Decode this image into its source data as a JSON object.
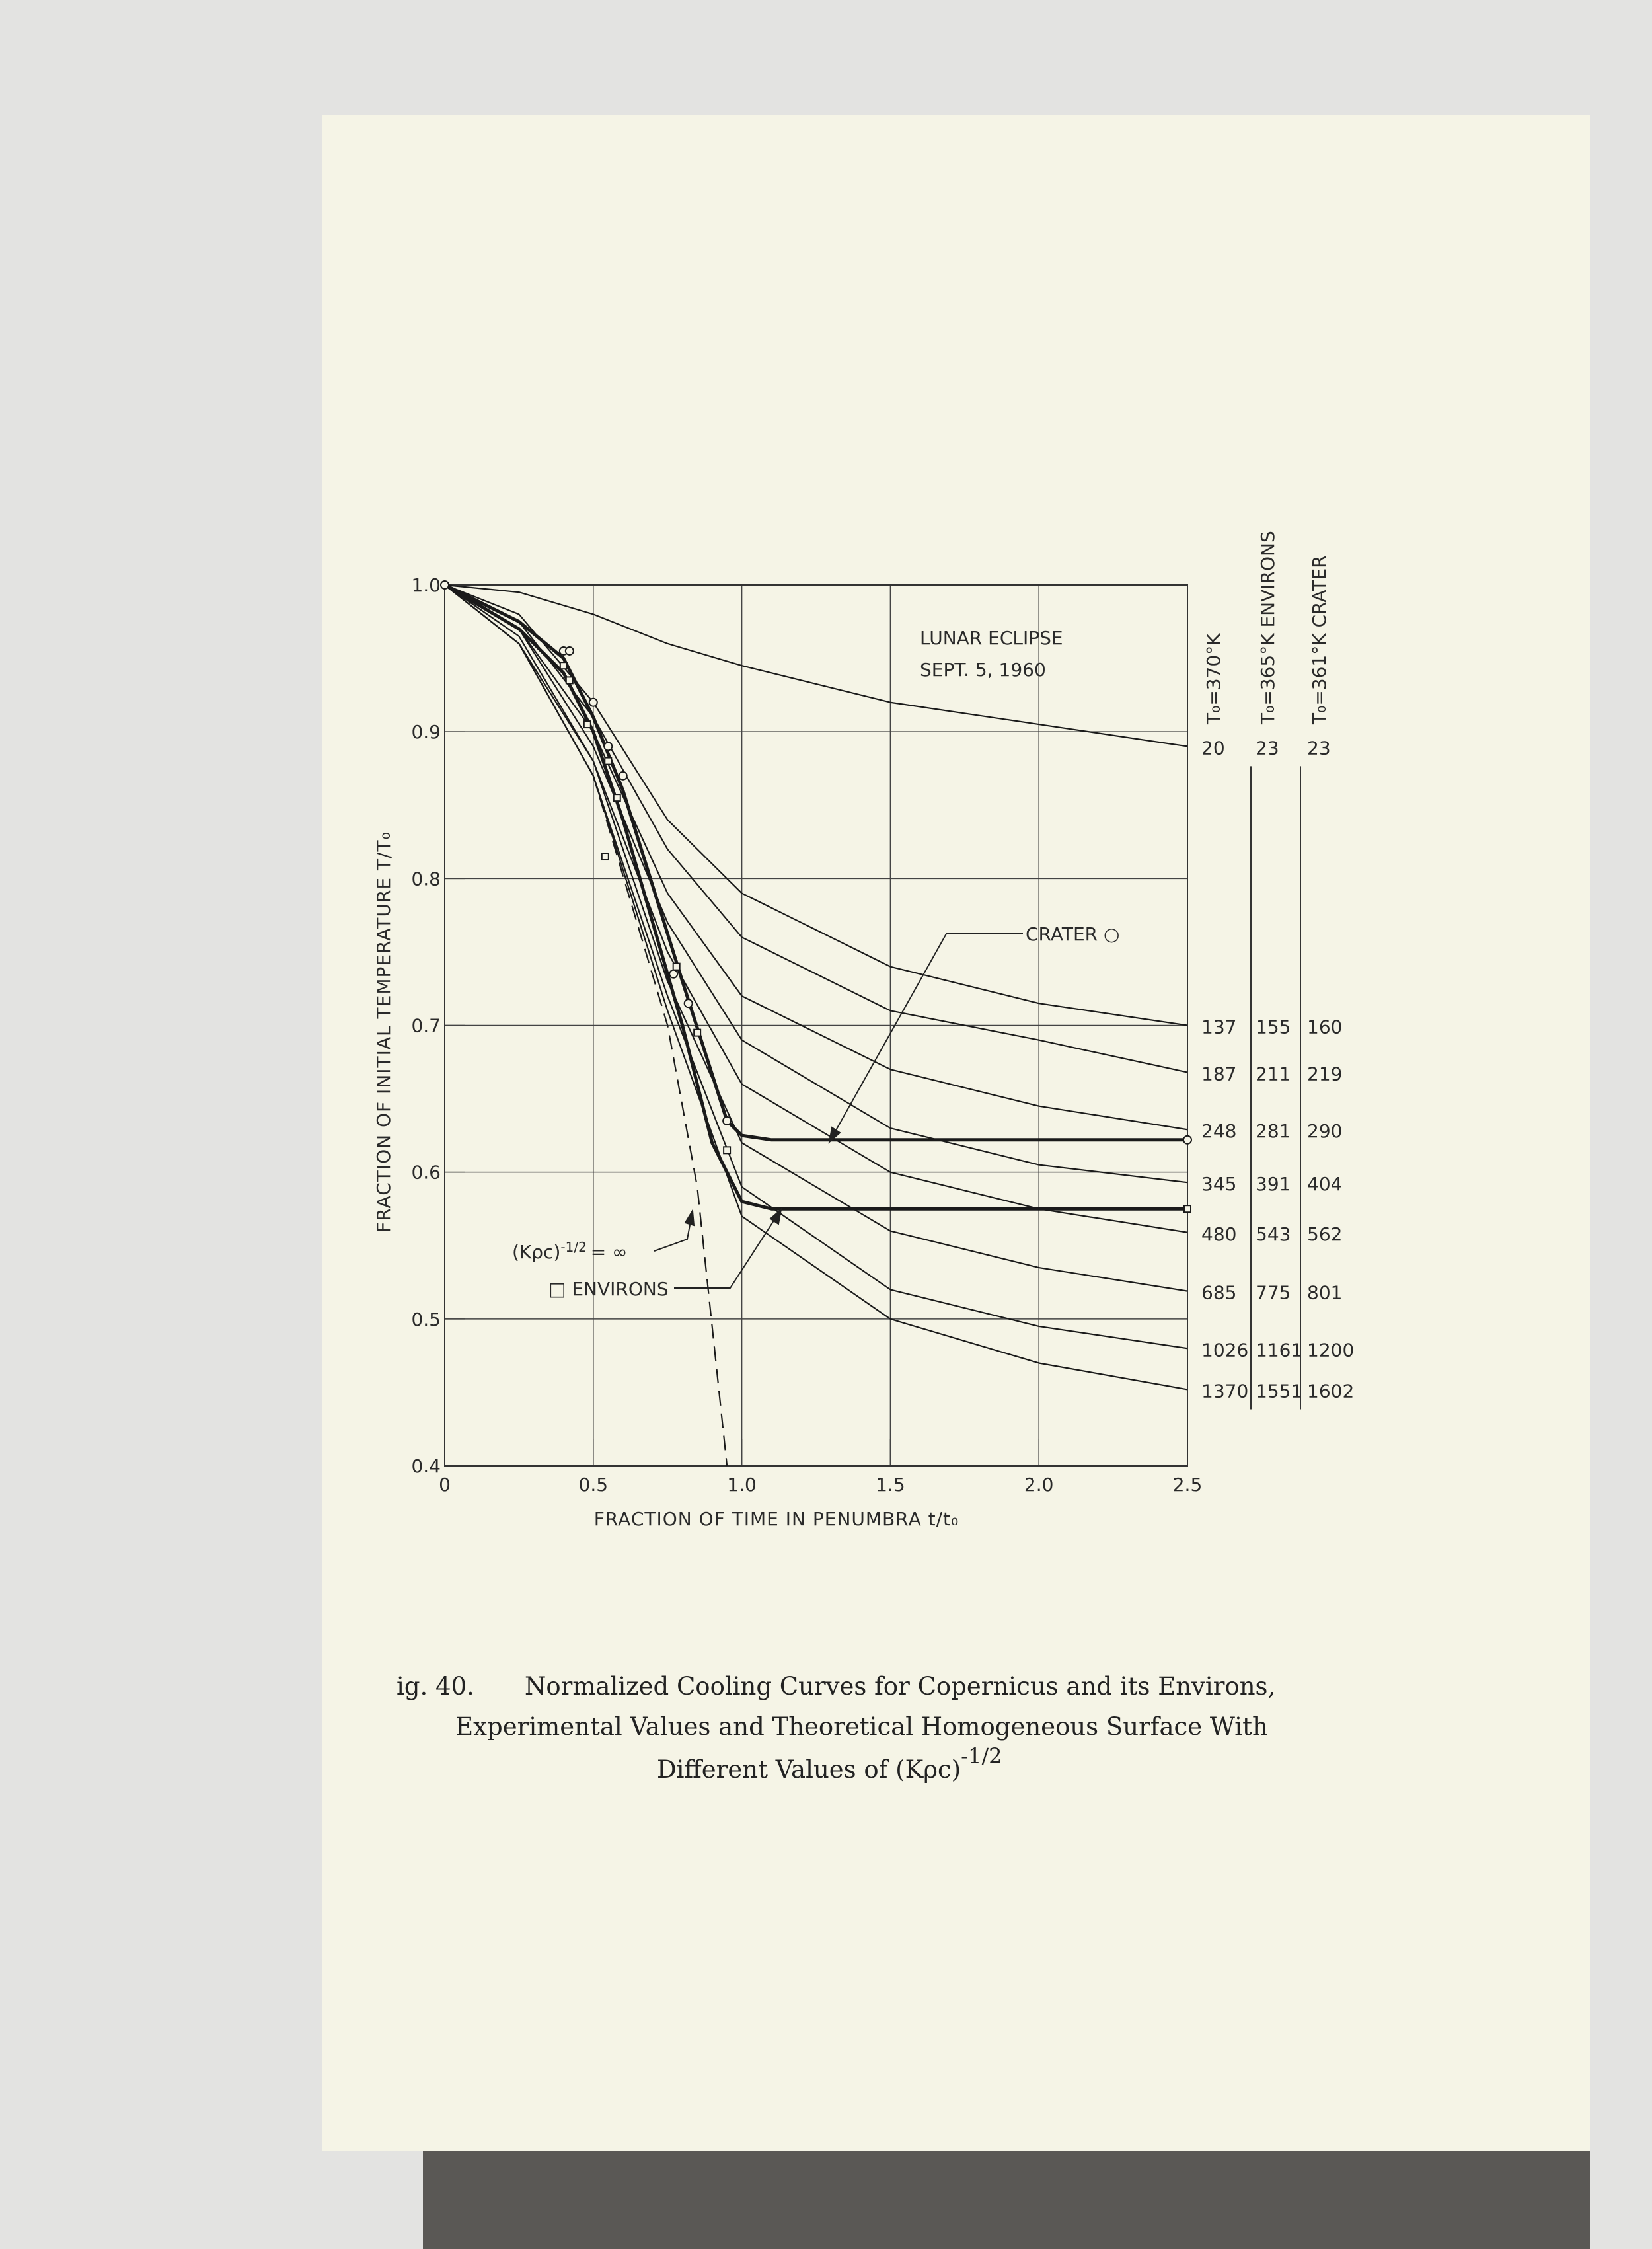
{
  "chart_data": {
    "type": "line",
    "xlabel": "FRACTION OF TIME IN PENUMBRA t/t₀",
    "ylabel": "FRACTION OF INITIAL TEMPERATURE T/T₀",
    "xlim": [
      0,
      2.5
    ],
    "ylim": [
      0.4,
      1.0
    ],
    "xticks": [
      0,
      0.5,
      {
        "value": 1,
        "label": "1.0"
      },
      1.5,
      {
        "value": 2,
        "label": "2.0"
      },
      2.5
    ],
    "yticks": [
      0.4,
      0.5,
      0.6,
      0.7,
      0.8,
      0.9,
      {
        "value": 1,
        "label": "1.0"
      }
    ],
    "grid": true,
    "color": "#1a1a1a",
    "series": [
      {
        "x": [
          0,
          0.25,
          0.5,
          0.75,
          1.0,
          1.5,
          2.0,
          2.5
        ],
        "values": [
          1,
          0.995,
          0.98,
          0.96,
          0.945,
          0.92,
          0.905,
          0.89
        ]
      },
      {
        "x": [
          0,
          0.25,
          0.5,
          0.75,
          1.0,
          1.5,
          2.0,
          2.5
        ],
        "values": [
          1,
          0.98,
          0.92,
          0.84,
          0.79,
          0.74,
          0.715,
          0.7
        ]
      },
      {
        "x": [
          0,
          0.25,
          0.5,
          0.75,
          1.0,
          1.5,
          2.0,
          2.5
        ],
        "values": [
          1,
          0.975,
          0.91,
          0.82,
          0.76,
          0.71,
          0.69,
          0.668
        ]
      },
      {
        "x": [
          0,
          0.25,
          0.5,
          0.75,
          1.0,
          1.5,
          2.0,
          2.5
        ],
        "values": [
          1,
          0.97,
          0.9,
          0.79,
          0.72,
          0.67,
          0.645,
          0.629
        ]
      },
      {
        "x": [
          0,
          0.25,
          0.5,
          0.75,
          1.0,
          1.5,
          2.0,
          2.5
        ],
        "values": [
          1,
          0.97,
          0.89,
          0.77,
          0.69,
          0.63,
          0.605,
          0.593
        ]
      },
      {
        "x": [
          0,
          0.25,
          0.5,
          0.75,
          1.0,
          1.5,
          2.0,
          2.5
        ],
        "values": [
          1,
          0.965,
          0.88,
          0.75,
          0.66,
          0.6,
          0.575,
          0.559
        ]
      },
      {
        "x": [
          0,
          0.25,
          0.5,
          0.75,
          1.0,
          1.5,
          2.0,
          2.5
        ],
        "values": [
          1,
          0.96,
          0.88,
          0.73,
          0.62,
          0.56,
          0.535,
          0.519
        ]
      },
      {
        "x": [
          0,
          0.25,
          0.5,
          0.75,
          1.0,
          1.5,
          2.0,
          2.5
        ],
        "values": [
          1,
          0.96,
          0.87,
          0.72,
          0.59,
          0.52,
          0.495,
          0.48
        ]
      },
      {
        "x": [
          0,
          0.25,
          0.5,
          0.75,
          1.0,
          1.5,
          2.0,
          2.5
        ],
        "values": [
          1,
          0.96,
          0.87,
          0.71,
          0.57,
          0.5,
          0.47,
          0.452
        ]
      },
      {
        "x": [
          0,
          0.25,
          0.5,
          0.75,
          0.85,
          0.95
        ],
        "values": [
          1,
          0.96,
          0.87,
          0.7,
          0.59,
          0.4
        ],
        "style": "dashed"
      },
      {
        "x": [
          0,
          0.25,
          0.4,
          0.5,
          0.6,
          0.8,
          0.95,
          1.0,
          1.1,
          2.5
        ],
        "values": [
          1,
          0.975,
          0.95,
          0.91,
          0.86,
          0.73,
          0.635,
          0.625,
          0.622,
          0.622
        ],
        "style": "bold"
      },
      {
        "x": [
          0,
          0.25,
          0.4,
          0.5,
          0.6,
          0.8,
          0.9,
          1.0,
          1.1,
          2.5
        ],
        "values": [
          1,
          0.97,
          0.94,
          0.9,
          0.84,
          0.7,
          0.62,
          0.58,
          0.575,
          0.575
        ],
        "style": "bold"
      }
    ],
    "points": [
      {
        "marker": "circle",
        "x": [
          0,
          0.4,
          0.42,
          0.5,
          0.55,
          0.6,
          0.77,
          0.82,
          0.95,
          2.5
        ],
        "values": [
          1,
          0.955,
          0.955,
          0.92,
          0.89,
          0.87,
          0.735,
          0.715,
          0.635,
          0.622
        ]
      },
      {
        "marker": "square",
        "x": [
          0.4,
          0.42,
          0.48,
          0.55,
          0.58,
          0.54,
          0.78,
          0.85,
          0.95,
          2.5
        ],
        "values": [
          0.945,
          0.935,
          0.905,
          0.88,
          0.855,
          0.815,
          0.74,
          0.695,
          0.615,
          0.575
        ]
      }
    ],
    "annotations": [
      "LUNAR ECLIPSE",
      "SEPT. 5, 1960",
      "CRATER ○",
      "□ ENVIRONS"
    ],
    "infinity_label": {
      "base": "(Kρc)",
      "exp": "-1/2",
      "rest": "= ∞"
    },
    "right_table": {
      "headers": [
        "T₀=370°K",
        "T₀=365°K ENVIRONS",
        "T₀=361°K CRATER"
      ],
      "rows": [
        [
          20,
          23,
          23
        ],
        [
          137,
          155,
          160
        ],
        [
          187,
          211,
          219
        ],
        [
          248,
          281,
          290
        ],
        [
          345,
          391,
          404
        ],
        [
          480,
          543,
          562
        ],
        [
          685,
          775,
          801
        ],
        [
          1026,
          1161,
          1200
        ],
        [
          1370,
          1551,
          1602
        ]
      ]
    }
  },
  "caption": {
    "label": "ig. 40.",
    "line1": "Normalized Cooling Curves for  Copernicus and its Environs,",
    "line2": "Experimental Values and Theoretical Homogeneous Surface With",
    "line3": {
      "text": "Different Values of (Kρc)",
      "sup": "-1/2"
    }
  }
}
